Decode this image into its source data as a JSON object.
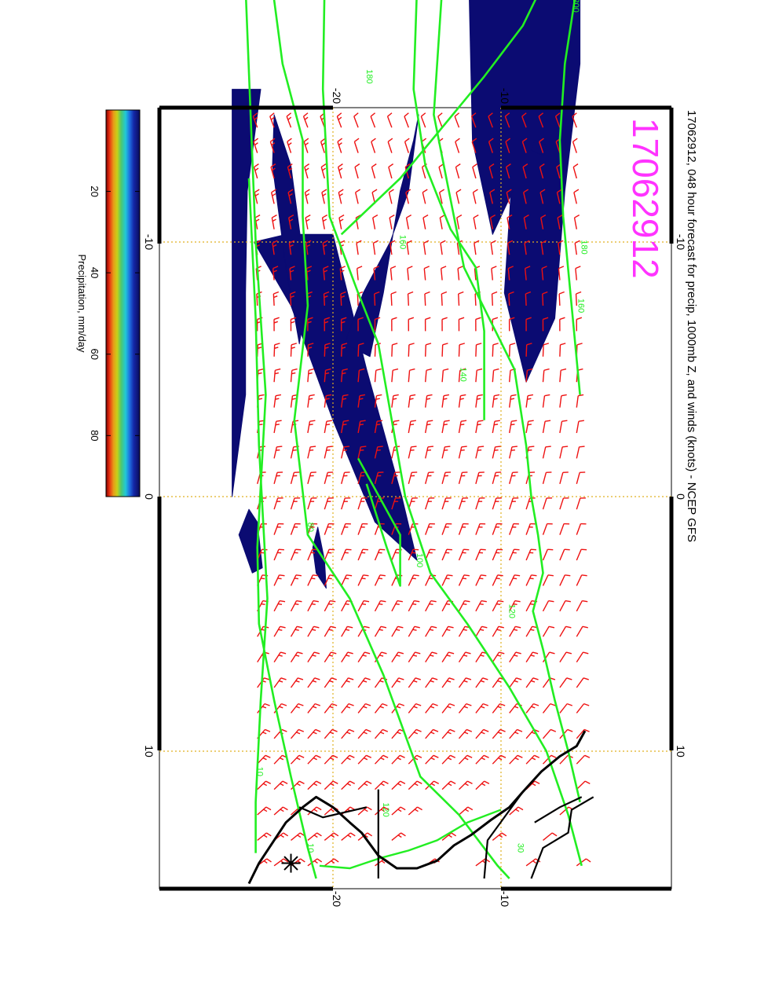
{
  "title": "17062912, 048 hour forecast for precip, 1000mb Z, and winds (knots) - NCEP GFS",
  "stamp": "17062912",
  "colorbar": {
    "label": "Precipitation, mm/day",
    "ticks": [
      "20",
      "40",
      "60",
      "80"
    ],
    "range": [
      0,
      95
    ],
    "colors": [
      "#0a0a5a",
      "#1428a8",
      "#1e6fe0",
      "#20c8d8",
      "#4cc870",
      "#c8d018",
      "#e89a18",
      "#e83010",
      "#800000"
    ]
  },
  "axes": {
    "lon_ticks": [
      "-10",
      "0",
      "10"
    ],
    "lat_ticks": [
      "-20",
      "-10"
    ],
    "lon_range": [
      -20,
      15
    ],
    "lat_range": [
      -25,
      -5
    ]
  },
  "contours": {
    "color": "#22ee22",
    "levels": [
      "200",
      "180",
      "160",
      "140",
      "120",
      "100",
      "80",
      "60",
      "40",
      "20",
      "10"
    ],
    "label_marks": [
      {
        "text": "200",
        "lon": -19.3,
        "lat": -5.7
      },
      {
        "text": "180",
        "lon": -9.8,
        "lat": -5.2
      },
      {
        "text": "160",
        "lon": -7.5,
        "lat": -5.4
      },
      {
        "text": "180",
        "lon": -16.5,
        "lat": -18.0
      },
      {
        "text": "160",
        "lon": -10.0,
        "lat": -16.0
      },
      {
        "text": "140",
        "lon": -4.8,
        "lat": -12.4
      },
      {
        "text": "120",
        "lon": 4.5,
        "lat": -9.5
      },
      {
        "text": "100",
        "lon": 2.5,
        "lat": -15.0
      },
      {
        "text": "80",
        "lon": 1.2,
        "lat": -21.5
      },
      {
        "text": "120",
        "lon": 12.3,
        "lat": -17.0
      },
      {
        "text": "30",
        "lon": 13.8,
        "lat": -9.0
      },
      {
        "text": "10",
        "lon": 10.8,
        "lat": -24.5
      },
      {
        "text": "10",
        "lon": 13.8,
        "lat": -21.5
      }
    ]
  },
  "wind_barbs": {
    "color": "#ee1111",
    "units": "knots"
  },
  "precip_color": "#0b0b72",
  "coast_color": "#000000"
}
